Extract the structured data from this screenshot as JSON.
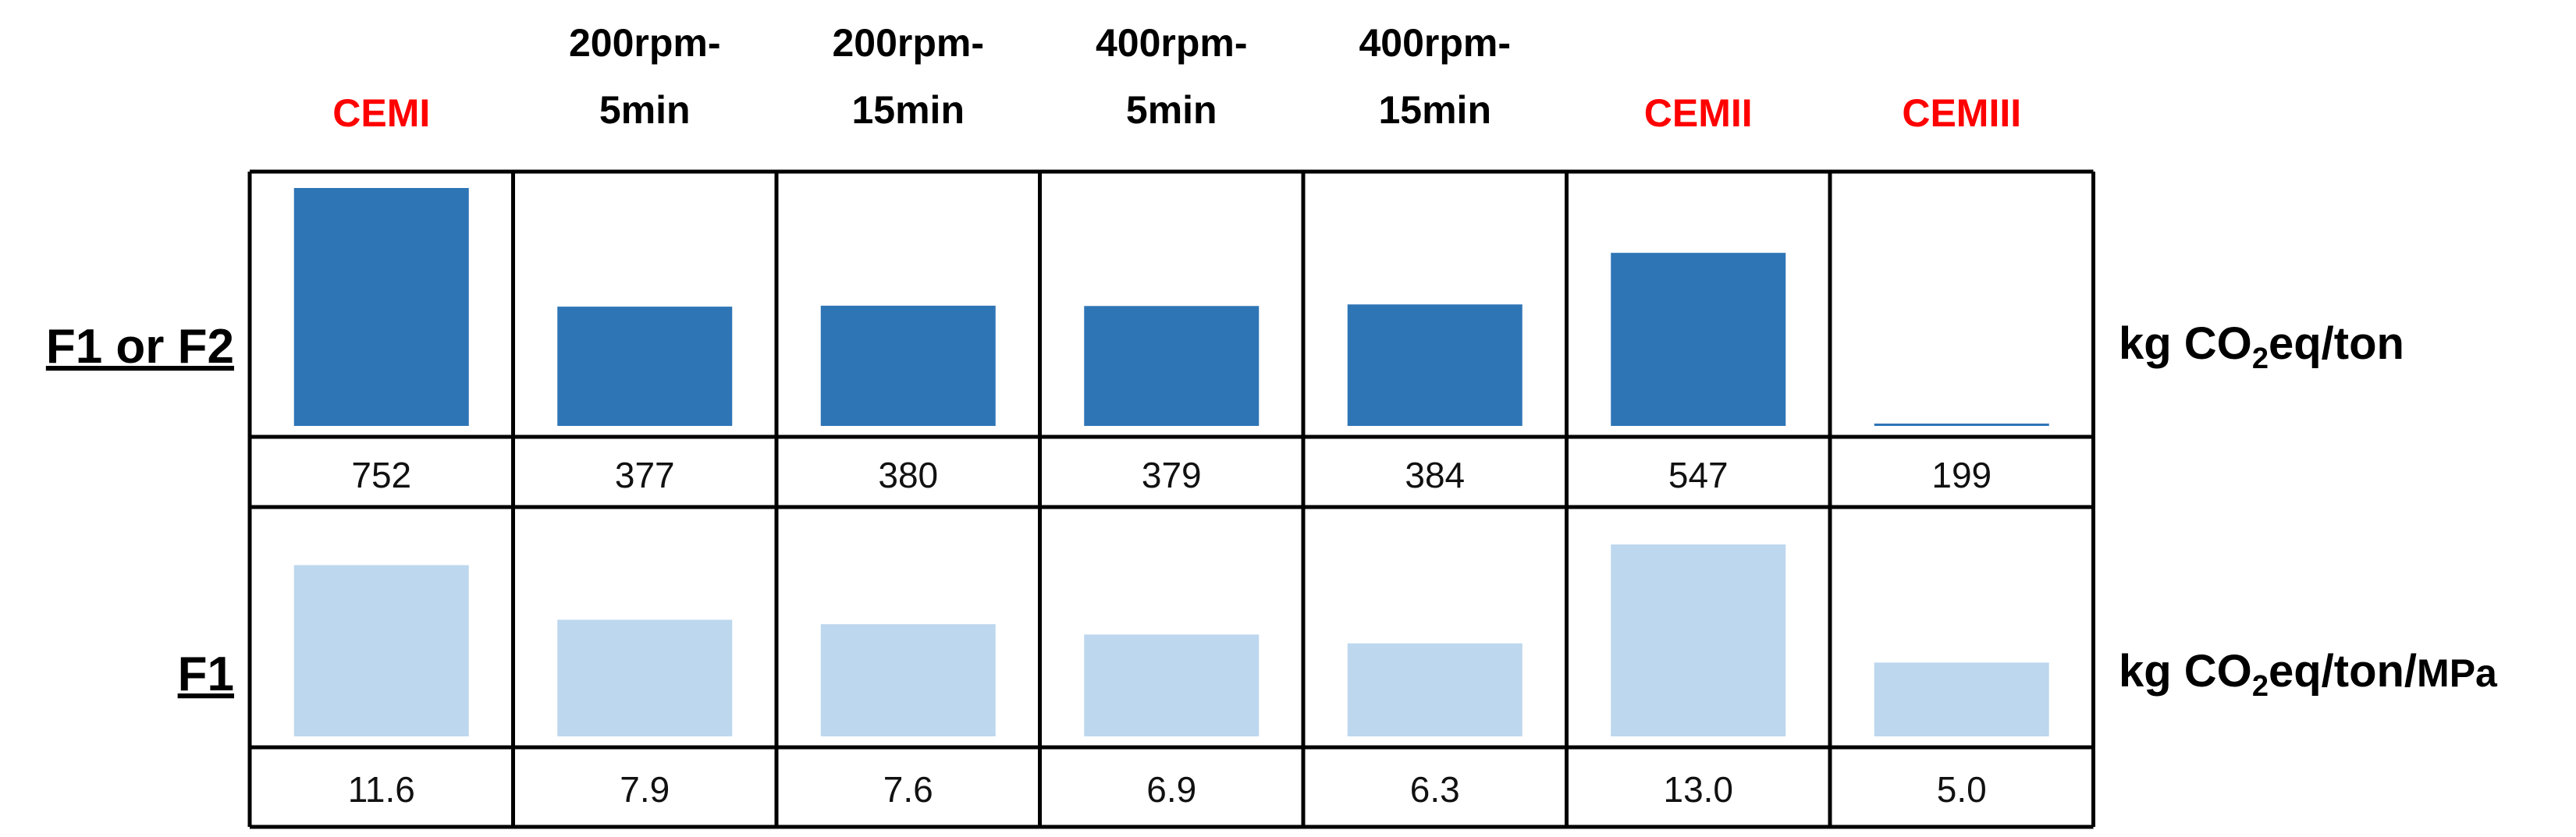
{
  "chart_data": [
    {
      "type": "bar",
      "categories": [
        "CEMI",
        "200rpm-5min",
        "200rpm-15min",
        "400rpm-5min",
        "400rpm-15min",
        "CEMII",
        "CEMIII"
      ],
      "series": [
        {
          "name": "F1 or F2",
          "values": [
            752,
            377,
            380,
            379,
            384,
            547,
            199
          ],
          "value_labels": [
            "752",
            "377",
            "380",
            "379",
            "384",
            "547",
            "199"
          ],
          "color": "#2E75B6"
        }
      ],
      "ylabel": "kg CO2eq/ton",
      "unit": {
        "main": "kg CO",
        "sub": "2",
        "rest": "eq/ton"
      }
    },
    {
      "type": "bar",
      "categories": [
        "CEMI",
        "200rpm-5min",
        "200rpm-15min",
        "400rpm-5min",
        "400rpm-15min",
        "CEMII",
        "CEMIII"
      ],
      "series": [
        {
          "name": "F1",
          "values": [
            11.6,
            7.9,
            7.6,
            6.9,
            6.3,
            13.0,
            5.0
          ],
          "value_labels": [
            "11.6",
            "7.9",
            "7.6",
            "6.9",
            "6.3",
            "13.0",
            "5.0"
          ],
          "color": "#BDD7EE"
        }
      ],
      "ylabel": "kg CO2eq/ton/MPa",
      "unit": {
        "main": "kg CO",
        "sub": "2",
        "rest": "eq/ton/",
        "tail": "MPa"
      }
    }
  ],
  "columns": [
    {
      "lines": [
        "CEMI"
      ],
      "color": "#FF0000"
    },
    {
      "lines": [
        "200rpm-",
        "5min"
      ],
      "color": "#000000"
    },
    {
      "lines": [
        "200rpm-",
        "15min"
      ],
      "color": "#000000"
    },
    {
      "lines": [
        "400rpm-",
        "5min"
      ],
      "color": "#000000"
    },
    {
      "lines": [
        "400rpm-",
        "15min"
      ],
      "color": "#000000"
    },
    {
      "lines": [
        "CEMII"
      ],
      "color": "#FF0000"
    },
    {
      "lines": [
        "CEMIII"
      ],
      "color": "#FF0000"
    }
  ]
}
